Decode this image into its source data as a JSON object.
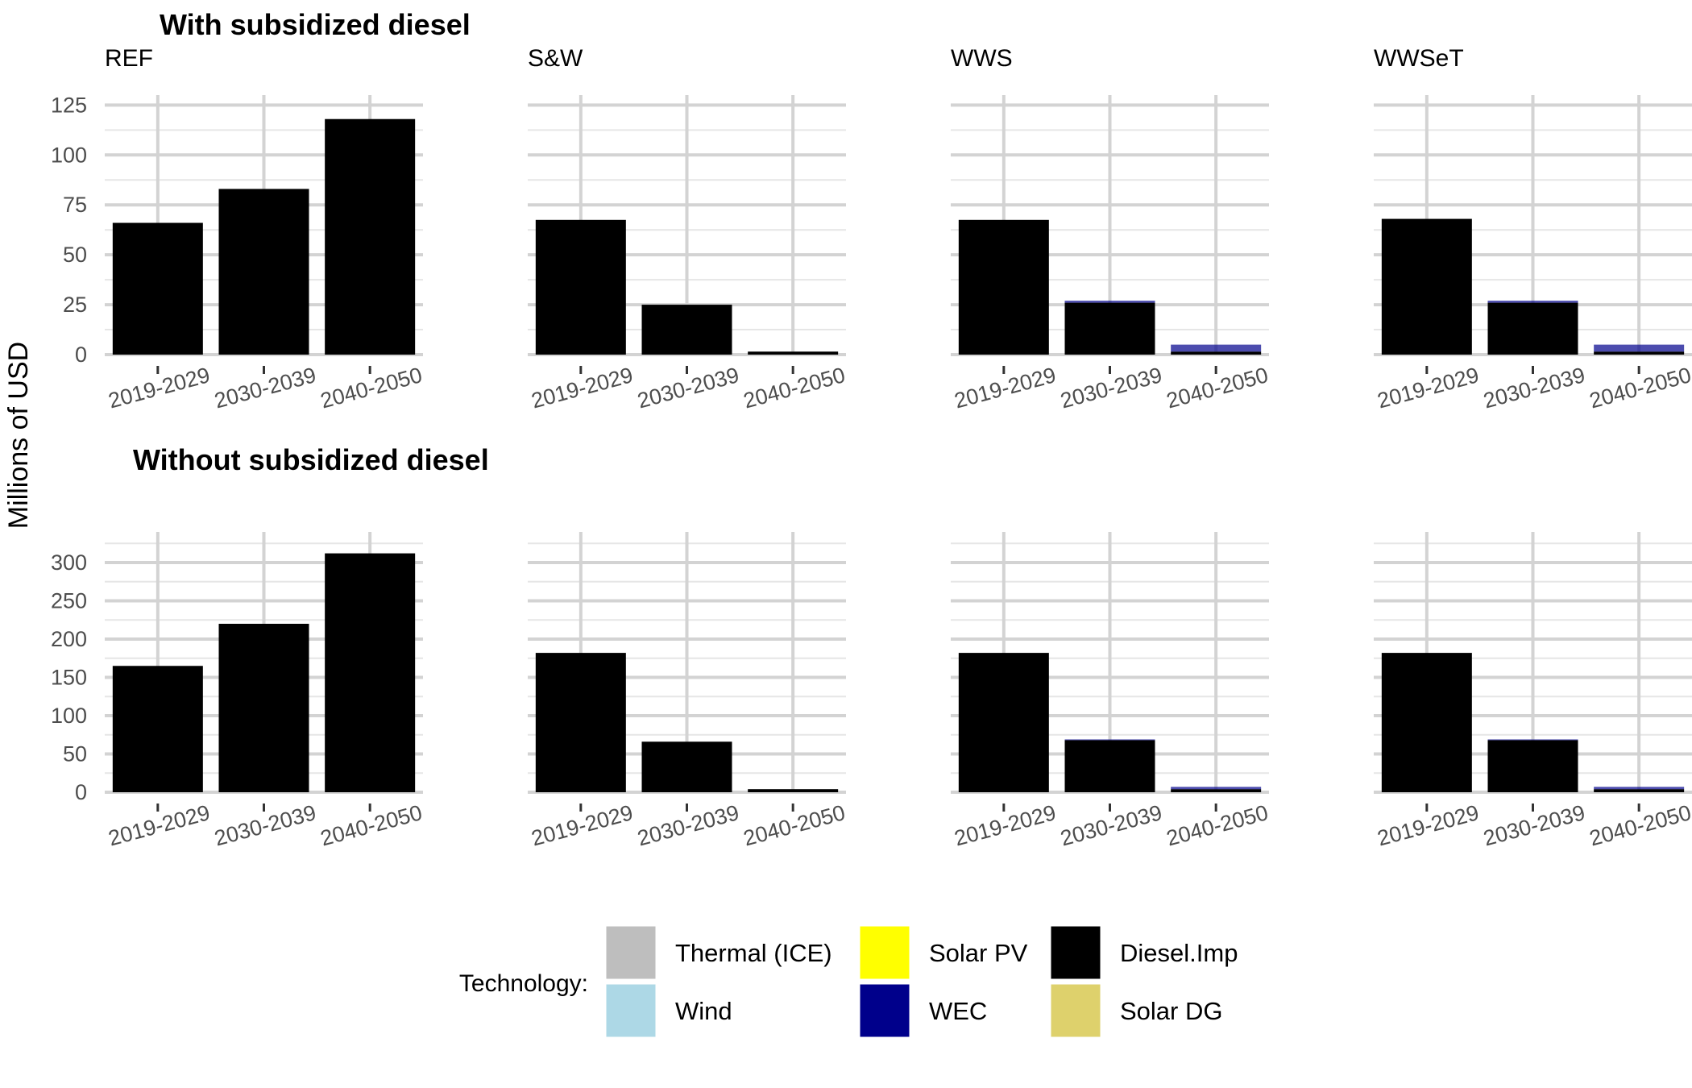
{
  "chart_data": {
    "type": "bar",
    "stacked": true,
    "ylabel": "Millions of USD",
    "categories": [
      "2019-2029",
      "2030-2039",
      "2040-2050"
    ],
    "legend": {
      "title": "Technology:",
      "position": "bottom",
      "items": [
        {
          "name": "Thermal (ICE)",
          "color": "#bebebe"
        },
        {
          "name": "Wind",
          "color": "#add8e6"
        },
        {
          "name": "Solar PV",
          "color": "#ffff00"
        },
        {
          "name": "WEC",
          "color": "#00008b"
        },
        {
          "name": "Diesel.Imp",
          "color": "#000000"
        },
        {
          "name": "Solar DG",
          "color": "#ded16c"
        }
      ]
    },
    "rows": [
      {
        "title": "With subsidized diesel",
        "ylim": [
          0,
          130
        ],
        "yticks": [
          0,
          25,
          50,
          75,
          100,
          125
        ],
        "facets": [
          {
            "title": "REF",
            "series": [
              {
                "name": "Diesel.Imp",
                "values": [
                  66,
                  83,
                  118
                ]
              },
              {
                "name": "WEC",
                "values": [
                  0,
                  0,
                  0
                ]
              }
            ]
          },
          {
            "title": "S&W",
            "series": [
              {
                "name": "Diesel.Imp",
                "values": [
                  67.5,
                  25,
                  1.5
                ]
              },
              {
                "name": "WEC",
                "values": [
                  0,
                  0,
                  0
                ]
              }
            ]
          },
          {
            "title": "WWS",
            "series": [
              {
                "name": "Diesel.Imp",
                "values": [
                  67.5,
                  26,
                  1.5
                ]
              },
              {
                "name": "WEC",
                "values": [
                  0,
                  1,
                  3.5
                ]
              }
            ]
          },
          {
            "title": "WWSeT",
            "series": [
              {
                "name": "Diesel.Imp",
                "values": [
                  68,
                  26,
                  1.5
                ]
              },
              {
                "name": "WEC",
                "values": [
                  0,
                  1,
                  3.5
                ]
              }
            ]
          }
        ]
      },
      {
        "title": "Without subsidized diesel",
        "ylim": [
          0,
          340
        ],
        "yticks": [
          0,
          50,
          100,
          150,
          200,
          250,
          300
        ],
        "facets": [
          {
            "title": "",
            "series": [
              {
                "name": "Diesel.Imp",
                "values": [
                  165,
                  220,
                  312
                ]
              },
              {
                "name": "WEC",
                "values": [
                  0,
                  0,
                  0
                ]
              }
            ]
          },
          {
            "title": "",
            "series": [
              {
                "name": "Diesel.Imp",
                "values": [
                  182,
                  66,
                  4
                ]
              },
              {
                "name": "WEC",
                "values": [
                  0,
                  0,
                  0
                ]
              }
            ]
          },
          {
            "title": "",
            "series": [
              {
                "name": "Diesel.Imp",
                "values": [
                  182,
                  68,
                  4
                ]
              },
              {
                "name": "WEC",
                "values": [
                  0,
                  1,
                  3
                ]
              }
            ]
          },
          {
            "title": "",
            "series": [
              {
                "name": "Diesel.Imp",
                "values": [
                  182,
                  68,
                  4
                ]
              },
              {
                "name": "WEC",
                "values": [
                  0,
                  1,
                  3
                ]
              }
            ]
          }
        ]
      }
    ]
  }
}
